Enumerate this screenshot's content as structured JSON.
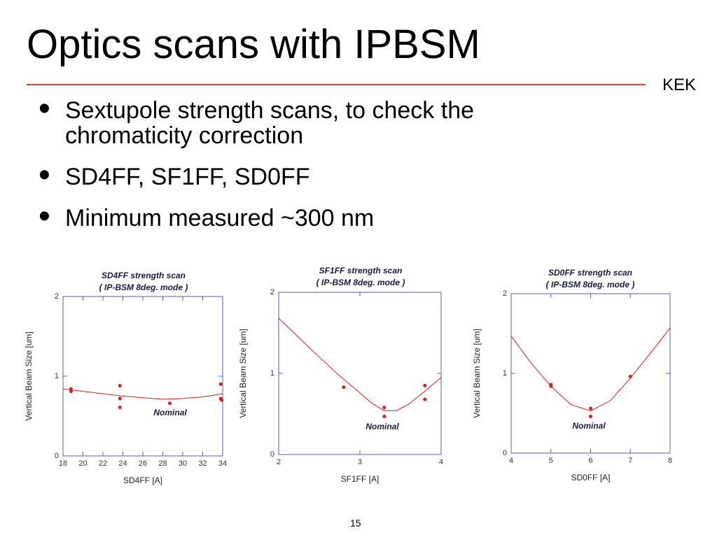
{
  "title": "Optics scans with IPBSM",
  "org": "KEK",
  "bullets": [
    "Sextupole strength scans, to check the chromaticity correction",
    "SD4FF,  SF1FF, SD0FF",
    "Minimum measured ~300 nm"
  ],
  "page_number": "15",
  "chart_data": [
    {
      "type": "scatter",
      "title": "SD4FF strength scan",
      "subtitle": "( IP-BSM 8deg. mode )",
      "x_label": "SD4FF [A]",
      "y_label": "Vertical Beam Size [um]",
      "annotation": "Nominal",
      "xlim": [
        18,
        34
      ],
      "xticks": [
        18,
        20,
        22,
        24,
        26,
        28,
        30,
        32,
        34
      ],
      "ylim": [
        0,
        2
      ],
      "yticks": [
        0,
        1,
        2
      ],
      "series": [
        {
          "style": "markers",
          "color": "#d42020",
          "x": [
            18.8,
            18.8,
            23.7,
            23.7,
            23.7,
            28.7,
            33.8,
            33.8,
            33.9
          ],
          "values": [
            0.84,
            0.81,
            0.88,
            0.72,
            0.61,
            0.66,
            0.9,
            0.72,
            0.7
          ]
        },
        {
          "style": "line",
          "color": "#d42020",
          "x": [
            18,
            20,
            22,
            24,
            26,
            28,
            30,
            32,
            34
          ],
          "values": [
            0.84,
            0.81,
            0.78,
            0.75,
            0.73,
            0.71,
            0.72,
            0.74,
            0.78
          ]
        }
      ]
    },
    {
      "type": "scatter",
      "title": "SF1FF strength scan",
      "subtitle": "( IP-BSM 8deg. mode )",
      "x_label": "SF1FF [A]",
      "y_label": "Vertical Beam Size [um]",
      "annotation": "Nominal",
      "xlim": [
        2,
        4
      ],
      "xticks": [
        2,
        3,
        4
      ],
      "ylim": [
        0,
        2
      ],
      "yticks": [
        0,
        1,
        2
      ],
      "series": [
        {
          "style": "markers",
          "color": "#d42020",
          "x": [
            2.8,
            3.3,
            3.3,
            3.8,
            3.8
          ],
          "values": [
            0.83,
            0.58,
            0.47,
            0.85,
            0.68
          ]
        },
        {
          "style": "line",
          "color": "#d42020",
          "x": [
            2,
            2.25,
            2.5,
            2.75,
            3,
            3.15,
            3.3,
            3.45,
            3.6,
            3.8,
            4
          ],
          "values": [
            1.68,
            1.44,
            1.2,
            0.97,
            0.76,
            0.63,
            0.54,
            0.54,
            0.62,
            0.78,
            0.95
          ]
        }
      ]
    },
    {
      "type": "scatter",
      "title": "SD0FF strength scan",
      "subtitle": "( IP-BSM 8deg. mode )",
      "x_label": "SD0FF [A]",
      "y_label": "Vertical Beam Size [um]",
      "annotation": "Nominal",
      "xlim": [
        4,
        8
      ],
      "xticks": [
        4,
        5,
        6,
        7,
        8
      ],
      "ylim": [
        0,
        2
      ],
      "yticks": [
        0,
        1,
        2
      ],
      "series": [
        {
          "style": "markers",
          "color": "#d42020",
          "x": [
            5,
            5,
            6,
            6,
            7
          ],
          "values": [
            0.86,
            0.84,
            0.56,
            0.46,
            0.96
          ]
        },
        {
          "style": "line",
          "color": "#d42020",
          "x": [
            4,
            4.5,
            5,
            5.5,
            6,
            6.5,
            7,
            7.5,
            8
          ],
          "values": [
            1.47,
            1.13,
            0.84,
            0.61,
            0.53,
            0.66,
            0.94,
            1.25,
            1.57
          ]
        }
      ]
    }
  ]
}
